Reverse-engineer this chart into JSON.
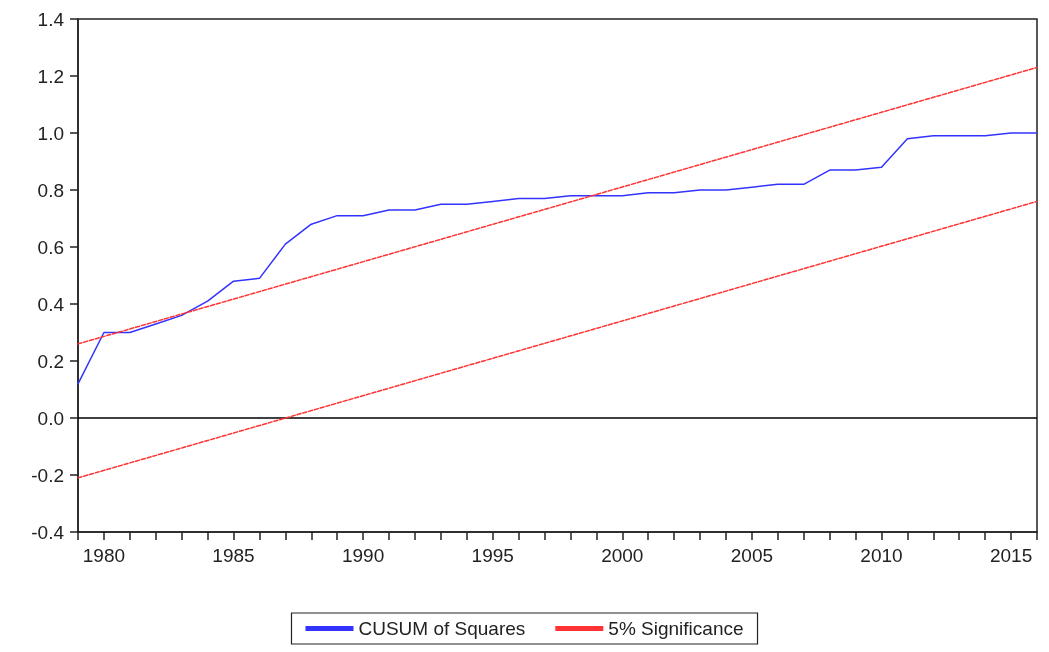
{
  "chart_data": {
    "type": "line",
    "xlim": [
      1979,
      2016
    ],
    "xticks": [
      {
        "value": 1979,
        "label": null
      },
      {
        "value": 1980,
        "label": "1980"
      },
      {
        "value": 1981,
        "label": null
      },
      {
        "value": 1982,
        "label": null
      },
      {
        "value": 1983,
        "label": null
      },
      {
        "value": 1984,
        "label": null
      },
      {
        "value": 1985,
        "label": "1985"
      },
      {
        "value": 1986,
        "label": null
      },
      {
        "value": 1987,
        "label": null
      },
      {
        "value": 1988,
        "label": null
      },
      {
        "value": 1989,
        "label": null
      },
      {
        "value": 1990,
        "label": "1990"
      },
      {
        "value": 1991,
        "label": null
      },
      {
        "value": 1992,
        "label": null
      },
      {
        "value": 1993,
        "label": null
      },
      {
        "value": 1994,
        "label": null
      },
      {
        "value": 1995,
        "label": "1995"
      },
      {
        "value": 1996,
        "label": null
      },
      {
        "value": 1997,
        "label": null
      },
      {
        "value": 1998,
        "label": null
      },
      {
        "value": 1999,
        "label": null
      },
      {
        "value": 2000,
        "label": "2000"
      },
      {
        "value": 2001,
        "label": null
      },
      {
        "value": 2002,
        "label": null
      },
      {
        "value": 2003,
        "label": null
      },
      {
        "value": 2004,
        "label": null
      },
      {
        "value": 2005,
        "label": "2005"
      },
      {
        "value": 2006,
        "label": null
      },
      {
        "value": 2007,
        "label": null
      },
      {
        "value": 2008,
        "label": null
      },
      {
        "value": 2009,
        "label": null
      },
      {
        "value": 2010,
        "label": "2010"
      },
      {
        "value": 2011,
        "label": null
      },
      {
        "value": 2012,
        "label": null
      },
      {
        "value": 2013,
        "label": null
      },
      {
        "value": 2014,
        "label": null
      },
      {
        "value": 2015,
        "label": "2015"
      },
      {
        "value": 2016,
        "label": null
      }
    ],
    "ylim": [
      -0.4,
      1.4
    ],
    "yticks": [
      {
        "value": -0.4,
        "label": "-0.4"
      },
      {
        "value": -0.2,
        "label": "-0.2"
      },
      {
        "value": 0,
        "label": "0.0"
      },
      {
        "value": 0.2,
        "label": "0.2"
      },
      {
        "value": 0.4,
        "label": "0.4"
      },
      {
        "value": 0.6,
        "label": "0.6"
      },
      {
        "value": 0.8,
        "label": "0.8"
      },
      {
        "value": 1.0,
        "label": "1.0"
      },
      {
        "value": 1.2,
        "label": "1.2"
      },
      {
        "value": 1.4,
        "label": "1.4"
      }
    ],
    "grid": false,
    "legend": "bottom",
    "marker": "none",
    "ref_lines": [
      {
        "axis": "y",
        "value": 0,
        "color": "#000000",
        "line_style": "solid"
      }
    ],
    "series": [
      {
        "name": "CUSUM of Squares",
        "color": "#3333ff",
        "line_style": "solid",
        "x": [
          1979,
          1980,
          1981,
          1982,
          1983,
          1984,
          1985,
          1986,
          1987,
          1988,
          1989,
          1990,
          1991,
          1992,
          1993,
          1994,
          1995,
          1996,
          1997,
          1998,
          1999,
          2000,
          2001,
          2002,
          2003,
          2004,
          2005,
          2006,
          2007,
          2008,
          2009,
          2010,
          2011,
          2012,
          2013,
          2014,
          2015,
          2016
        ],
        "values": [
          0.12,
          0.3,
          0.3,
          0.33,
          0.36,
          0.41,
          0.48,
          0.49,
          0.61,
          0.68,
          0.71,
          0.71,
          0.73,
          0.73,
          0.75,
          0.75,
          0.76,
          0.77,
          0.77,
          0.78,
          0.78,
          0.78,
          0.79,
          0.79,
          0.8,
          0.8,
          0.81,
          0.82,
          0.82,
          0.87,
          0.87,
          0.88,
          0.98,
          0.99,
          0.99,
          0.99,
          1.0,
          1.0
        ]
      },
      {
        "name": "5% Significance",
        "color": "#ff3333",
        "line_style": "dashed",
        "x": [
          1979,
          2016
        ],
        "values": [
          0.26,
          1.23
        ]
      },
      {
        "color": "#ff3333",
        "line_style": "dashed",
        "x": [
          1979,
          2016
        ],
        "values": [
          -0.21,
          0.76
        ]
      }
    ]
  }
}
